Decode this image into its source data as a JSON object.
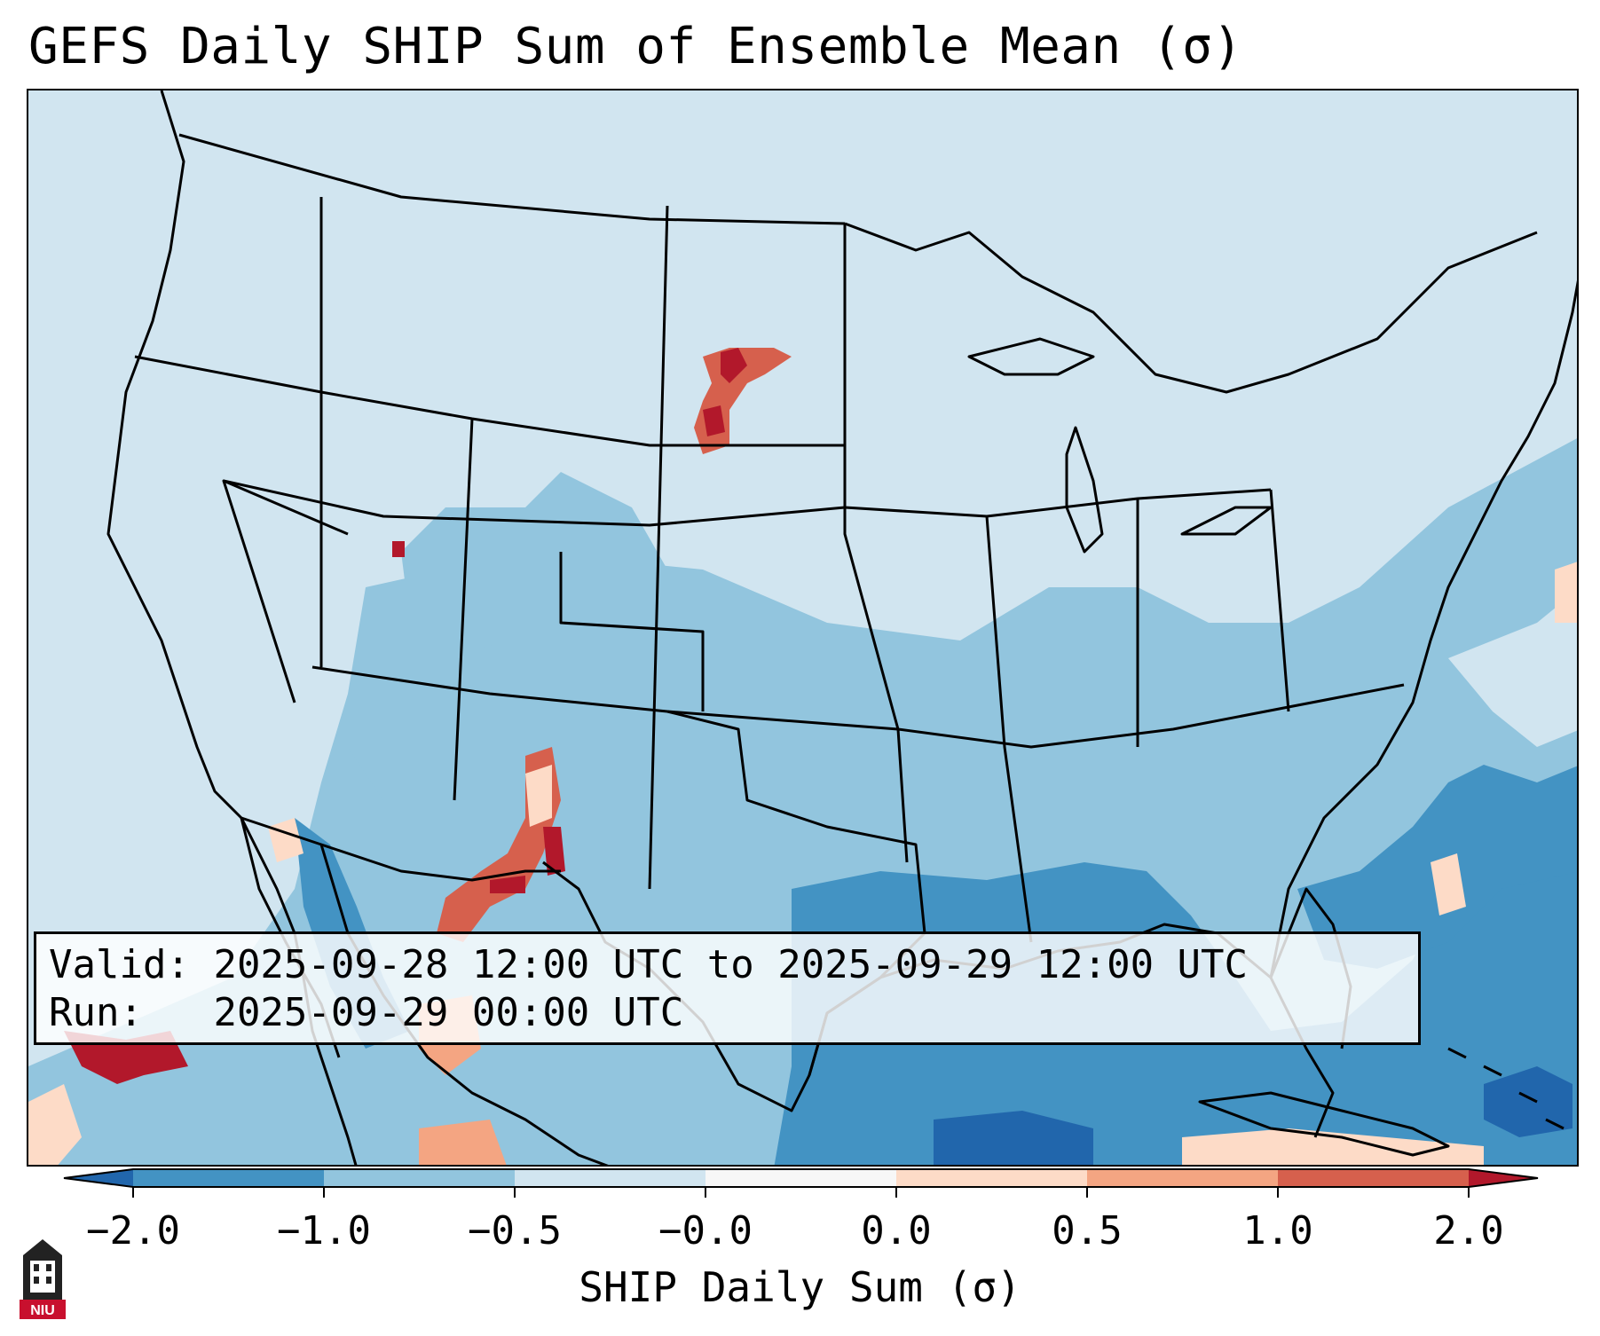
{
  "title": "GEFS Daily SHIP Sum of Ensemble Mean (σ)",
  "info": {
    "valid_label": "Valid:",
    "valid_value": "2025-09-28 12:00 UTC to 2025-09-29 12:00 UTC",
    "run_label": "Run:",
    "run_value": "2025-09-29 00:00 UTC"
  },
  "colorbar": {
    "label": "SHIP Daily Sum (σ)",
    "ticks": [
      "−2.0",
      "−1.0",
      "−0.5",
      "−0.0",
      "0.0",
      "0.5",
      "1.0",
      "2.0"
    ],
    "colors": [
      "#4393c3",
      "#92c5de",
      "#d1e5f0",
      "#f7f7f7",
      "#fddbc7",
      "#f4a582",
      "#d6604d"
    ],
    "under_color": "#2166ac",
    "over_color": "#b2182b"
  },
  "logo": {
    "text": "NIU",
    "icon": "university-tower-icon"
  },
  "map": {
    "background_color": "#d1e5f0",
    "ocean_color": "#4393c3",
    "land_color": "#92c5de",
    "deep_color": "#2166ac",
    "line_color": "#000000"
  }
}
